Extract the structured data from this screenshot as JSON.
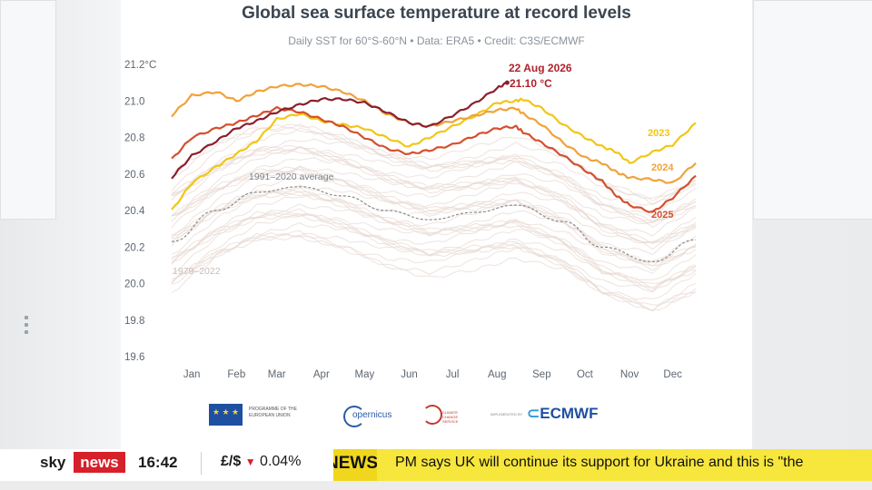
{
  "chart_data": {
    "type": "line",
    "title": "Global sea surface temperature at record levels",
    "subtitle": "Daily SST for 60°S-60°N • Data: ERA5 • Credit: C3S/ECMWF",
    "ylim": [
      19.6,
      21.2
    ],
    "y_ticks": [
      "21.2°C",
      "21.0",
      "20.8",
      "20.6",
      "20.4",
      "20.2",
      "20.0",
      "19.8",
      "19.6"
    ],
    "y_tick_values": [
      21.2,
      21.0,
      20.8,
      20.6,
      20.4,
      20.2,
      20.0,
      19.8,
      19.6
    ],
    "x_ticks": [
      "Jan",
      "Feb",
      "Mar",
      "Apr",
      "May",
      "Jun",
      "Jul",
      "Aug",
      "Sep",
      "Oct",
      "Nov",
      "Dec"
    ],
    "x_tick_days": [
      15,
      46,
      74,
      105,
      135,
      166,
      196,
      227,
      258,
      288,
      319,
      349
    ],
    "series": [
      {
        "name": "2023",
        "color": "#f1c617",
        "x": [
          1,
          15,
          32,
          46,
          60,
          74,
          90,
          105,
          120,
          135,
          150,
          166,
          180,
          196,
          212,
          227,
          240,
          245,
          258,
          273,
          288,
          300,
          310,
          319,
          335,
          349,
          365
        ],
        "values": [
          20.4,
          20.55,
          20.64,
          20.71,
          20.78,
          20.9,
          20.93,
          20.89,
          20.87,
          20.85,
          20.8,
          20.75,
          20.8,
          20.86,
          20.92,
          20.99,
          21.0,
          21.01,
          20.96,
          20.87,
          20.8,
          20.75,
          20.72,
          20.66,
          20.72,
          20.76,
          20.88
        ]
      },
      {
        "name": "2024",
        "color": "#f0a23a",
        "x": [
          1,
          15,
          32,
          46,
          60,
          74,
          90,
          105,
          120,
          135,
          150,
          166,
          180,
          196,
          212,
          227,
          240,
          245,
          258,
          273,
          288,
          300,
          310,
          319,
          335,
          349,
          365
        ],
        "values": [
          20.92,
          21.03,
          21.05,
          21.0,
          21.05,
          21.08,
          21.09,
          21.08,
          21.05,
          21.0,
          20.93,
          20.88,
          20.86,
          20.89,
          20.92,
          20.95,
          20.96,
          20.93,
          20.87,
          20.77,
          20.69,
          20.66,
          20.61,
          20.58,
          20.57,
          20.55,
          20.66
        ]
      },
      {
        "name": "2025",
        "color": "#d4502e",
        "x": [
          1,
          15,
          32,
          46,
          60,
          74,
          90,
          105,
          120,
          135,
          150,
          166,
          180,
          196,
          212,
          227,
          240,
          245,
          258,
          273,
          288,
          300,
          310,
          319,
          335,
          349,
          365
        ],
        "values": [
          20.68,
          20.8,
          20.85,
          20.88,
          20.92,
          20.96,
          20.94,
          20.9,
          20.86,
          20.8,
          20.74,
          20.71,
          20.73,
          20.76,
          20.81,
          20.85,
          20.86,
          20.83,
          20.77,
          20.7,
          20.62,
          20.56,
          20.48,
          20.43,
          20.39,
          20.47,
          20.59
        ]
      },
      {
        "name": "2026",
        "color": "#8b1f2d",
        "x": [
          1,
          15,
          32,
          46,
          60,
          74,
          90,
          105,
          120,
          135,
          150,
          166,
          180,
          196,
          212,
          227,
          234
        ],
        "values": [
          20.58,
          20.7,
          20.78,
          20.85,
          20.89,
          20.94,
          20.98,
          21.01,
          21.01,
          20.99,
          20.94,
          20.88,
          20.86,
          20.92,
          20.99,
          21.07,
          21.1
        ]
      }
    ],
    "average": {
      "label": "1991–2020 average",
      "color": "#8c8c8c",
      "x": [
        1,
        32,
        60,
        90,
        120,
        150,
        180,
        212,
        240,
        273,
        300,
        335,
        365
      ],
      "values": [
        20.23,
        20.4,
        20.5,
        20.53,
        20.48,
        20.4,
        20.35,
        20.39,
        20.43,
        20.34,
        20.2,
        20.12,
        20.24
      ]
    },
    "background_range_label": "1979–2022",
    "annotation": {
      "date": "22 Aug 2026",
      "value": "21.10 °C"
    }
  },
  "logos": {
    "eu_text": "PROGRAMME OF THE EUROPEAN UNION",
    "copernicus": "opernicus",
    "climate": "CLIMATE CHANGE SERVICE",
    "implemented": "IMPLEMENTED BY",
    "ecmwf": "ECMWF"
  },
  "ticker": {
    "brand_sky": "sky",
    "brand_news": "news",
    "time": "16:42",
    "market_label": "£/$",
    "market_change": "0.04%",
    "news_label": "NEWS",
    "headline": "PM says UK will continue its support for Ukraine and this is \"the"
  },
  "colors": {
    "news_red": "#d6202a",
    "ticker_yellow": "#f7e63b"
  }
}
